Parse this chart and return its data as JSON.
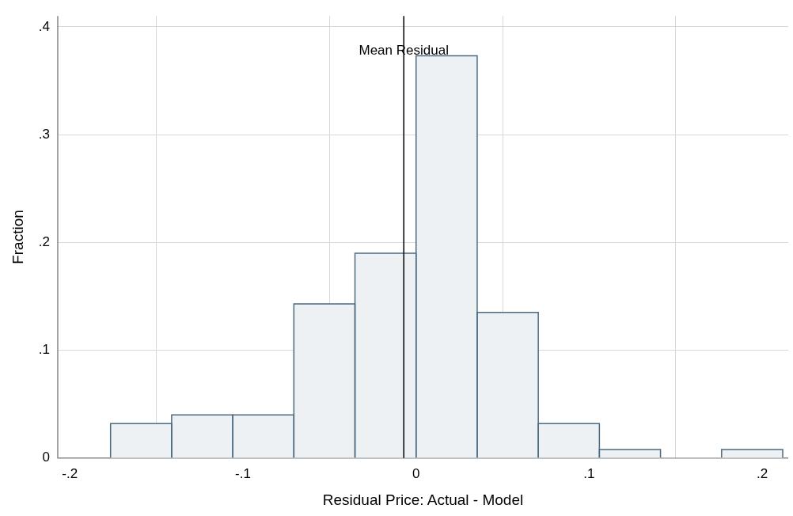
{
  "chart_data": {
    "type": "histogram",
    "xlabel": "Residual Price: Actual - Model",
    "ylabel": "Fraction",
    "bins": [
      -0.1765,
      -0.1412,
      -0.1059,
      -0.0706,
      -0.0353,
      0,
      0.0353,
      0.0706,
      0.1059,
      0.1412,
      0.1765,
      0.2118
    ],
    "values": [
      0.032,
      0.04,
      0.04,
      0.143,
      0.19,
      0.373,
      0.135,
      0.032,
      0.008,
      0,
      0.008
    ],
    "color": "#edf1f4",
    "xlim": [
      -0.207,
      0.215
    ],
    "xticks": [
      {
        "value": -0.2,
        "label": "-.2"
      },
      {
        "value": -0.1,
        "label": "-.1"
      },
      0,
      {
        "value": 0.1,
        "label": ".1"
      },
      {
        "value": 0.2,
        "label": ".2"
      }
    ],
    "ylim": [
      0,
      0.41
    ],
    "yticks": [
      0,
      {
        "value": 0.1,
        "label": ".1"
      },
      {
        "value": 0.2,
        "label": ".2"
      },
      {
        "value": 0.3,
        "label": ".3"
      },
      {
        "value": 0.4,
        "label": ".4"
      }
    ],
    "grid": true,
    "legend": false,
    "ref_lines": [
      {
        "axis": "x",
        "value": -0.0071,
        "label": "Mean Residual",
        "color": "#000000"
      }
    ]
  }
}
